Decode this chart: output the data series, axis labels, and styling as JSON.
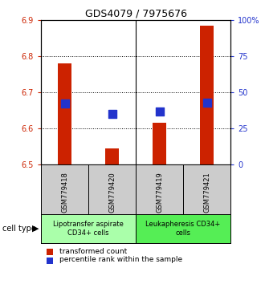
{
  "title": "GDS4079 / 7975676",
  "samples": [
    "GSM779418",
    "GSM779420",
    "GSM779419",
    "GSM779421"
  ],
  "transformed_counts": [
    6.78,
    6.545,
    6.615,
    6.885
  ],
  "percentile_ranks": [
    42,
    35,
    37,
    43
  ],
  "ylim_left": [
    6.5,
    6.9
  ],
  "ylim_right": [
    0,
    100
  ],
  "yticks_left": [
    6.5,
    6.6,
    6.7,
    6.8,
    6.9
  ],
  "yticks_right": [
    0,
    25,
    50,
    75,
    100
  ],
  "bar_color": "#cc2200",
  "dot_color": "#2233cc",
  "bar_width": 0.3,
  "dot_size": 50,
  "cell_type_labels": [
    "Lipotransfer aspirate\nCD34+ cells",
    "Leukapheresis CD34+\ncells"
  ],
  "cell_type_colors": [
    "#aaffaa",
    "#55ee55"
  ],
  "group_bg_color": "#cccccc",
  "legend_labels": [
    "transformed count",
    "percentile rank within the sample"
  ],
  "cell_type_label": "cell type"
}
